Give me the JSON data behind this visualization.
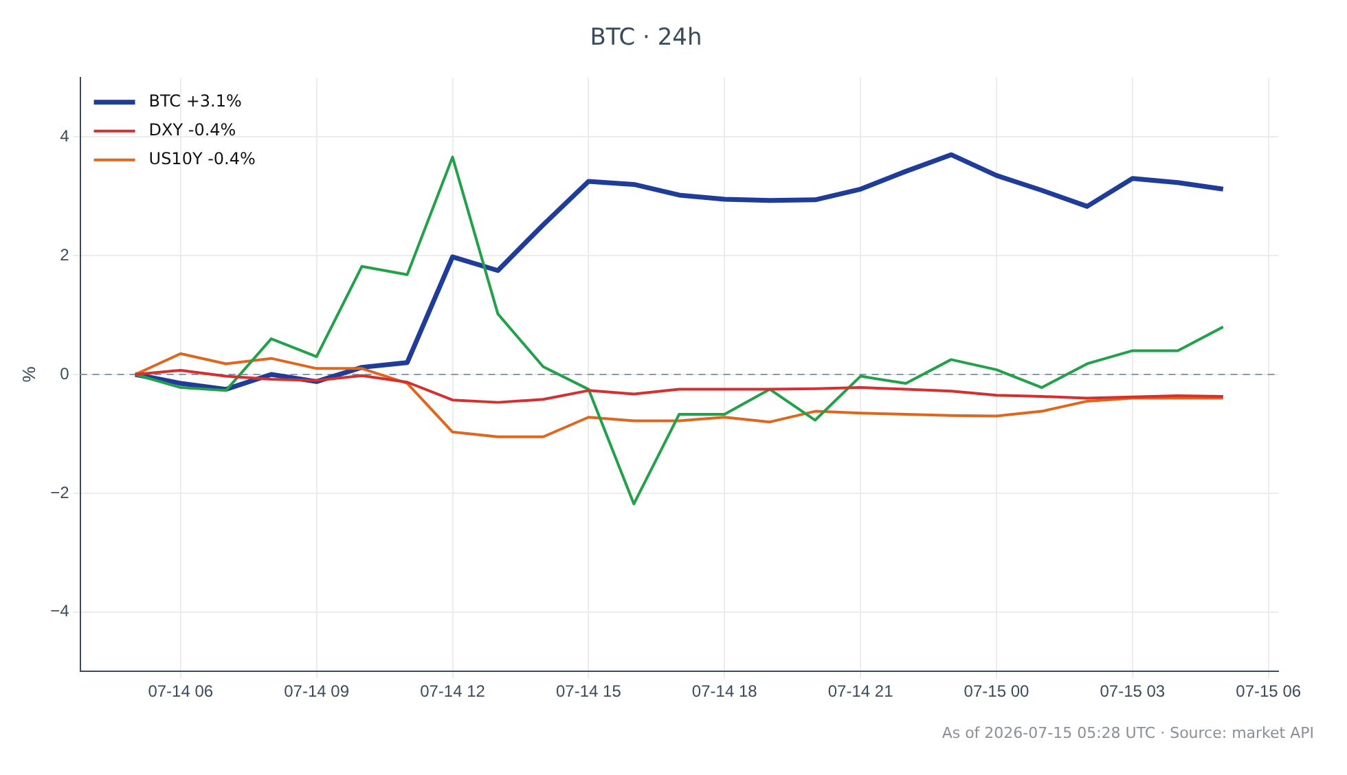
{
  "chart_data": {
    "type": "line",
    "title": "BTC · 24h",
    "ylabel": "%",
    "x": [
      "2026-07-14T05:00",
      "2026-07-14T06:00",
      "2026-07-14T07:00",
      "2026-07-14T08:00",
      "2026-07-14T09:00",
      "2026-07-14T10:00",
      "2026-07-14T11:00",
      "2026-07-14T12:00",
      "2026-07-14T13:00",
      "2026-07-14T14:00",
      "2026-07-14T15:00",
      "2026-07-14T16:00",
      "2026-07-14T17:00",
      "2026-07-14T18:00",
      "2026-07-14T19:00",
      "2026-07-14T20:00",
      "2026-07-14T21:00",
      "2026-07-14T22:00",
      "2026-07-14T23:00",
      "2026-07-15T00:00",
      "2026-07-15T01:00",
      "2026-07-15T02:00",
      "2026-07-15T03:00",
      "2026-07-15T04:00",
      "2026-07-15T05:00"
    ],
    "series": [
      {
        "name": "BTC +3.1%",
        "color": "#1f3c99",
        "values": [
          0,
          -0.15,
          -0.25,
          0,
          -0.12,
          0.12,
          0.2,
          1.98,
          1.75,
          2.52,
          3.25,
          3.2,
          3.02,
          2.95,
          2.93,
          2.94,
          3.12,
          3.42,
          3.7,
          3.35,
          3.1,
          2.83,
          3.3,
          3.23,
          3.12
        ]
      },
      {
        "name": "DXY -0.4%",
        "color": "#d62f2f",
        "values": [
          0,
          0.07,
          -0.03,
          -0.08,
          -0.1,
          -0.02,
          -0.13,
          -0.43,
          -0.47,
          -0.42,
          -0.27,
          -0.33,
          -0.25,
          -0.25,
          -0.25,
          -0.24,
          -0.22,
          -0.25,
          -0.28,
          -0.35,
          -0.37,
          -0.4,
          -0.38,
          -0.36,
          -0.37
        ]
      },
      {
        "color": "#22a04a",
        "values": [
          0,
          -0.22,
          -0.27,
          0.6,
          0.3,
          1.82,
          1.68,
          3.66,
          1.02,
          0.13,
          -0.25,
          -2.18,
          -0.67,
          -0.67,
          -0.25,
          -0.77,
          -0.03,
          -0.15,
          0.25,
          0.08,
          -0.22,
          0.18,
          0.4,
          0.4,
          0.8
        ]
      },
      {
        "name": "US10Y -0.4%",
        "color": "#e0661e",
        "values": [
          0,
          0.35,
          0.18,
          0.27,
          0.1,
          0.1,
          -0.15,
          -0.97,
          -1.05,
          -1.05,
          -0.72,
          -0.78,
          -0.78,
          -0.72,
          -0.8,
          -0.62,
          -0.65,
          -0.67,
          -0.69,
          -0.7,
          -0.62,
          -0.45,
          -0.4,
          -0.4,
          -0.4
        ]
      }
    ],
    "xlim": [
      "2026-07-14T03:47",
      "2026-07-15T06:13"
    ],
    "xticks": [
      {
        "value": "2026-07-14T06:00",
        "label": "07-14 06"
      },
      {
        "value": "2026-07-14T09:00",
        "label": "07-14 09"
      },
      {
        "value": "2026-07-14T12:00",
        "label": "07-14 12"
      },
      {
        "value": "2026-07-14T15:00",
        "label": "07-14 15"
      },
      {
        "value": "2026-07-14T18:00",
        "label": "07-14 18"
      },
      {
        "value": "2026-07-14T21:00",
        "label": "07-14 21"
      },
      {
        "value": "2026-07-15T00:00",
        "label": "07-15 00"
      },
      {
        "value": "2026-07-15T03:00",
        "label": "07-15 03"
      },
      {
        "value": "2026-07-15T06:00",
        "label": "07-15 06"
      }
    ],
    "ylim": [
      -5,
      5
    ],
    "yticks": [
      {
        "value": -4,
        "label": "−4"
      },
      {
        "value": -2,
        "label": "−2"
      },
      0,
      2,
      4
    ],
    "ref_lines": [
      {
        "axis": "y",
        "value": 0,
        "color": "#8a97a8",
        "line_style": "dashed"
      }
    ],
    "grid": true,
    "legend": "top left",
    "marker": "none",
    "line_style": "solid",
    "annotations": [
      "As of 2026-07-15 05:28 UTC · Source: market API"
    ]
  }
}
